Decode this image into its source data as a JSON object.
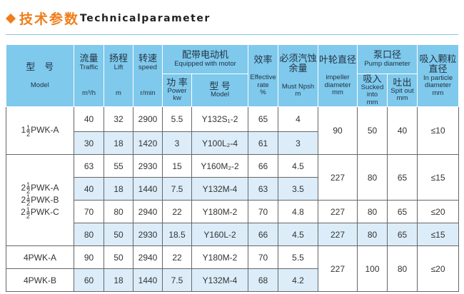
{
  "title": {
    "cn": "技术参数",
    "en": "Technicalparameter",
    "accent": "#f07d1a"
  },
  "header": {
    "model": {
      "cn": "型　号",
      "en": "Model"
    },
    "traffic": {
      "cn": "流量",
      "en": "Traffic",
      "unit": "m³/h"
    },
    "lift": {
      "cn": "扬程",
      "en": "Lift",
      "unit": "m"
    },
    "speed": {
      "cn": "转速",
      "en": "speed",
      "unit": "r/min"
    },
    "motor": {
      "cn": "配带电动机",
      "en": "Equipped with motor"
    },
    "power": {
      "cn": "功 率",
      "en": "Power",
      "unit": "kw"
    },
    "motor_model": {
      "cn": "型 号",
      "en": "Model"
    },
    "efficiency": {
      "cn": "效率",
      "en": "Effective rate",
      "unit": "%"
    },
    "npsh": {
      "cn": "必须汽蚀余量",
      "en": "Must Npsh",
      "unit": "m"
    },
    "impeller": {
      "cn": "叶轮直径",
      "en": "impeller diameter",
      "unit": "mm"
    },
    "pump": {
      "cn": "泵口径",
      "en": "Pump diameter"
    },
    "suction": {
      "cn": "吸入",
      "en": "Sucked into",
      "unit": "mm"
    },
    "outlet": {
      "cn": "吐出",
      "en": "Spit out",
      "unit": "mm"
    },
    "particle": {
      "cn": "吸入颗粒直径",
      "en": "In particle diameter",
      "unit": "mm"
    }
  },
  "models": {
    "g1": "PWK-A",
    "g2a": "PWK-A",
    "g2b": "PWK-B",
    "g2c": "PWK-C",
    "g3a": "4PWK-A",
    "g3b": "4PWK-B",
    "whole1": "1",
    "whole2": "2",
    "num": "1",
    "den": "2"
  },
  "rows": [
    [
      "40",
      "32",
      "2900",
      "5.5",
      "Y132S₁-2",
      "65",
      "4"
    ],
    [
      "30",
      "18",
      "1420",
      "3",
      "Y100L₂-4",
      "61",
      "3"
    ],
    [
      "63",
      "55",
      "2930",
      "15",
      "Y160M₂-2",
      "66",
      "4.5"
    ],
    [
      "40",
      "18",
      "1440",
      "7.5",
      "Y132M-4",
      "63",
      "3.5"
    ],
    [
      "70",
      "80",
      "2940",
      "22",
      "Y180M-2",
      "70",
      "4.8"
    ],
    [
      "80",
      "50",
      "2930",
      "18.5",
      "Y160L-2",
      "66",
      "4.5"
    ],
    [
      "90",
      "50",
      "2940",
      "22",
      "Y180M-2",
      "70",
      "5.5"
    ],
    [
      "60",
      "18",
      "1440",
      "7.5",
      "Y132M-4",
      "68",
      "4.2"
    ]
  ],
  "groups": [
    [
      "90",
      "50",
      "40",
      "≤10"
    ],
    [
      "227",
      "80",
      "65",
      "≤15"
    ],
    [
      "227",
      "80",
      "65",
      "≤20"
    ],
    [
      "227",
      "80",
      "65",
      "≤15"
    ],
    [
      "227",
      "100",
      "80",
      "≤20"
    ]
  ]
}
